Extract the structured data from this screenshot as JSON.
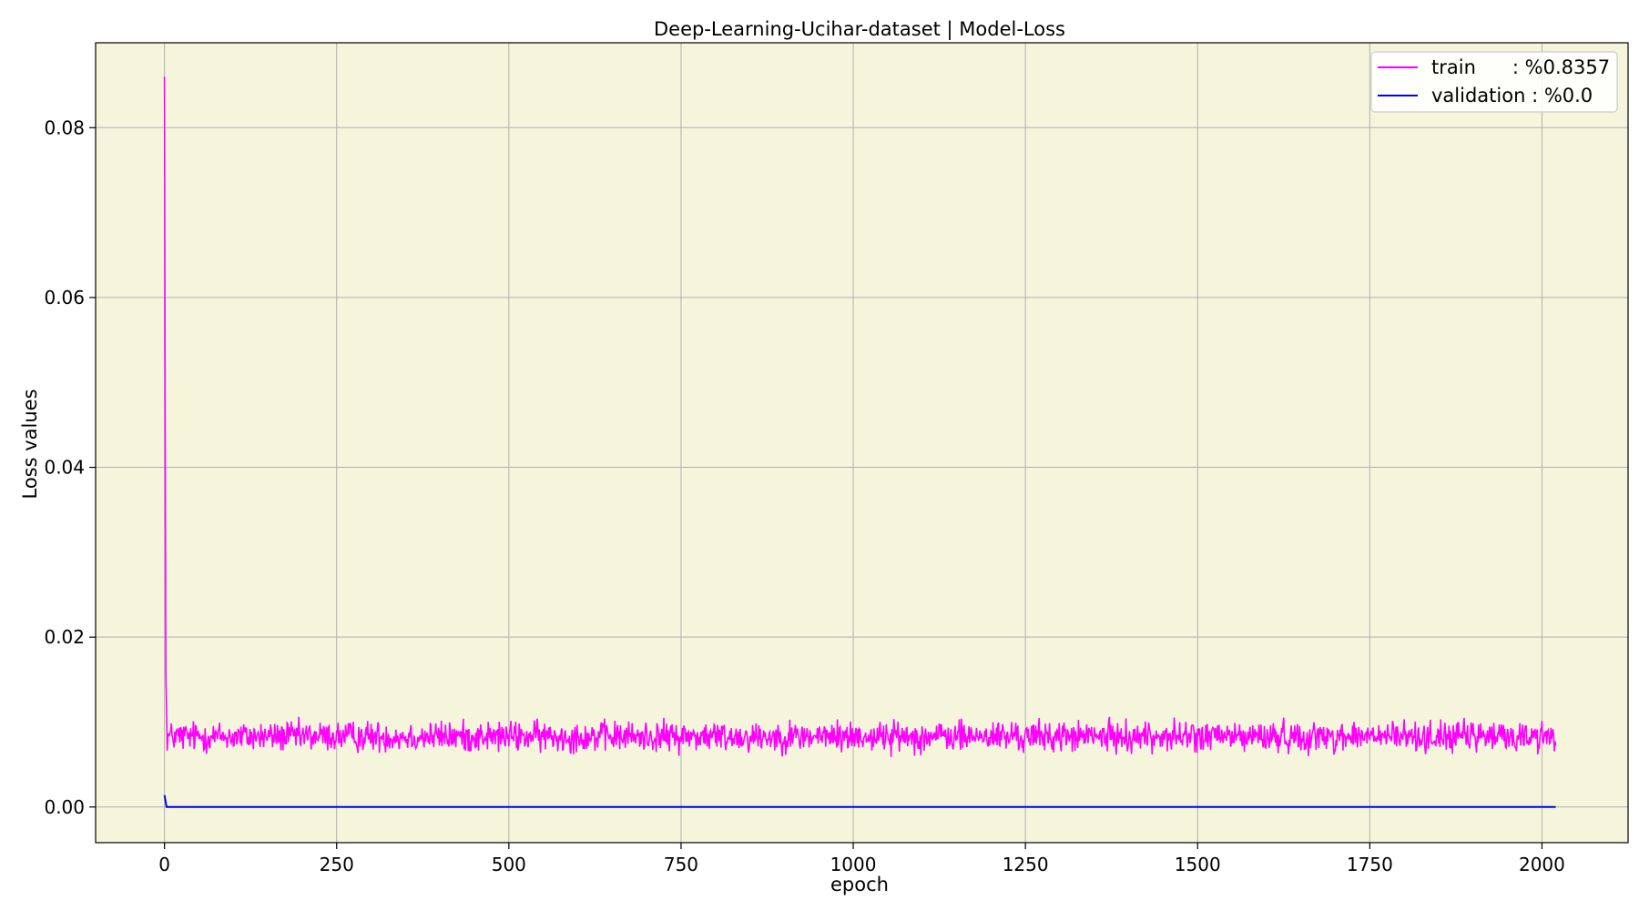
{
  "chart_data": {
    "type": "line",
    "title": "Deep-Learning-Ucihar-dataset  | Model-Loss",
    "xlabel": "epoch",
    "ylabel": "Loss values",
    "xlim": [
      -100,
      2125
    ],
    "ylim": [
      -0.0042,
      0.09
    ],
    "x_ticks": [
      0,
      250,
      500,
      750,
      1000,
      1250,
      1500,
      1750,
      2000
    ],
    "y_ticks": [
      0.0,
      0.02,
      0.04,
      0.06,
      0.08
    ],
    "y_tick_labels": [
      "0.00",
      "0.02",
      "0.04",
      "0.06",
      "0.08"
    ],
    "x_tick_labels": [
      "0",
      "250",
      "500",
      "750",
      "1000",
      "1250",
      "1500",
      "1750",
      "2000"
    ],
    "grid": true,
    "legend_placement": "upper-right",
    "plot_background": "#f5f5dc",
    "n_epochs": 2021,
    "series": [
      {
        "name": "train      : %0.8357",
        "color": "#ff00ff",
        "initial_points": [
          [
            0,
            0.086
          ],
          [
            1,
            0.045
          ],
          [
            2,
            0.016
          ],
          [
            3,
            0.0115
          ]
        ],
        "steady_mean": 0.0083,
        "steady_amplitude": 0.0018,
        "steady_min": 0.0047,
        "steady_max": 0.0124
      },
      {
        "name": "validation : %0.0",
        "color": "#0000ff",
        "initial_points": [
          [
            0,
            0.0014
          ],
          [
            3,
            0.0
          ]
        ],
        "steady_value": 0.0
      }
    ]
  }
}
